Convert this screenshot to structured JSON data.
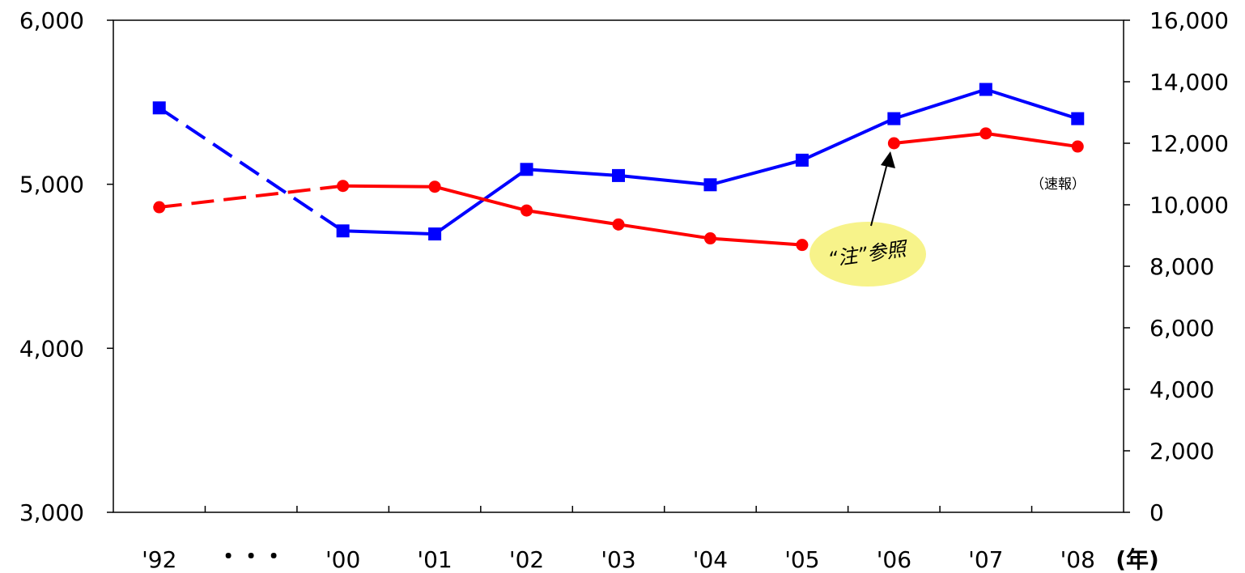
{
  "chart_data": {
    "type": "line",
    "title": "",
    "categories": [
      "'92",
      "・・・",
      "'00",
      "'01",
      "'02",
      "'03",
      "'04",
      "'05",
      "'06",
      "'07",
      "'08"
    ],
    "x_unit_label": "(年)",
    "y_left": {
      "ylim": [
        3000,
        6000
      ],
      "ticks": [
        "3,000",
        "4,000",
        "5,000",
        "6,000"
      ]
    },
    "y_right": {
      "ylim": [
        0,
        16000
      ],
      "ticks": [
        "0",
        "2,000",
        "4,000",
        "6,000",
        "8,000",
        "10,000",
        "12,000",
        "14,000",
        "16,000"
      ]
    },
    "series": [
      {
        "axis": "right",
        "marker": "square",
        "color": "#0000ff",
        "points": [
          {
            "category": "'92",
            "value": 13150
          },
          {
            "category": "'00",
            "value": 9150
          },
          {
            "category": "'01",
            "value": 9050
          },
          {
            "category": "'02",
            "value": 11150
          },
          {
            "category": "'03",
            "value": 10950
          },
          {
            "category": "'04",
            "value": 10650
          },
          {
            "category": "'05",
            "value": 11450
          },
          {
            "category": "'06",
            "value": 12800
          },
          {
            "category": "'07",
            "value": 13750
          },
          {
            "category": "'08",
            "value": 12800
          }
        ],
        "dashed_until_index": 1
      },
      {
        "axis": "left",
        "marker": "circle",
        "color": "#ff0000",
        "points": [
          {
            "category": "'92",
            "value": 4860
          },
          {
            "category": "'00",
            "value": 4990
          },
          {
            "category": "'01",
            "value": 4985
          },
          {
            "category": "'02",
            "value": 4840
          },
          {
            "category": "'03",
            "value": 4755
          },
          {
            "category": "'04",
            "value": 4670
          },
          {
            "category": "'05",
            "value": 4630
          },
          {
            "category": "'06",
            "value": 5250
          },
          {
            "category": "'07",
            "value": 5310
          },
          {
            "category": "'08",
            "value": 5230
          }
        ],
        "dashed_until_index": 1,
        "break_after_category": "'05"
      }
    ],
    "annotations": {
      "preliminary": "（速報）",
      "note": "“注”参照"
    }
  }
}
